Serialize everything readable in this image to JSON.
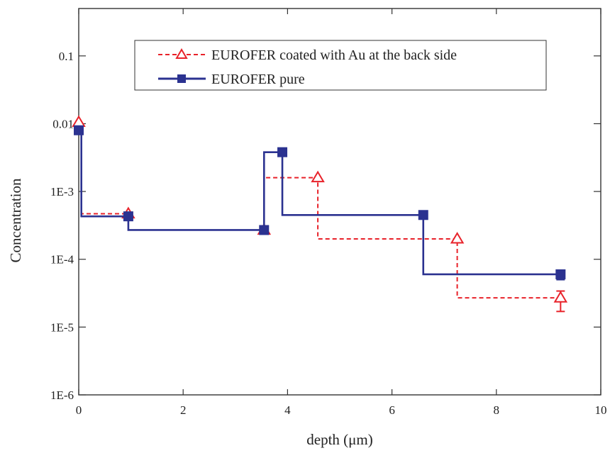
{
  "chart_data": {
    "type": "line",
    "step": true,
    "xlabel": "depth (μm)",
    "ylabel": "Concentration",
    "xlim": [
      0,
      10
    ],
    "ylim": [
      1e-06,
      0.5
    ],
    "yscale": "log",
    "x_ticks": [
      {
        "value": 0,
        "label": "0"
      },
      {
        "value": 2,
        "label": "2"
      },
      {
        "value": 4,
        "label": "4"
      },
      {
        "value": 6,
        "label": "6"
      },
      {
        "value": 8,
        "label": "8"
      },
      {
        "value": 10,
        "label": "10"
      }
    ],
    "y_ticks": [
      {
        "value": 0.1,
        "label": "0.1"
      },
      {
        "value": 0.01,
        "label": "0.01"
      },
      {
        "value": 0.001,
        "label": "1E-3"
      },
      {
        "value": 0.0001,
        "label": "1E-4"
      },
      {
        "value": 1e-05,
        "label": "1E-5"
      },
      {
        "value": 1e-06,
        "label": "1E-6"
      }
    ],
    "grid": false,
    "legend_position": "top-right",
    "series": [
      {
        "name": "EUROFER coated with Au at the back side",
        "color": "#e8222a",
        "line_style": "dashed",
        "marker": "open-triangle",
        "step_boundaries": [
          0.05,
          0.95,
          3.55,
          4.58,
          7.25
        ],
        "points": [
          {
            "x": 0.0,
            "y": 0.0105
          },
          {
            "x": 0.95,
            "y": 0.00047
          },
          {
            "x": 3.55,
            "y": 0.00027
          },
          {
            "x": 4.58,
            "y": 0.0016
          },
          {
            "x": 7.25,
            "y": 0.0002
          },
          {
            "x": 9.23,
            "y": 2.7e-05,
            "err_low": 1.7e-05,
            "err_high": 3.4e-05
          }
        ]
      },
      {
        "name": "EUROFER pure",
        "color": "#2b3290",
        "line_style": "solid",
        "marker": "filled-square",
        "step_boundaries": [
          0.05,
          0.95,
          3.55,
          3.9,
          6.6
        ],
        "points": [
          {
            "x": 0.0,
            "y": 0.008
          },
          {
            "x": 0.95,
            "y": 0.00043
          },
          {
            "x": 3.55,
            "y": 0.00027
          },
          {
            "x": 3.9,
            "y": 0.0038
          },
          {
            "x": 6.6,
            "y": 0.00045
          },
          {
            "x": 9.23,
            "y": 6e-05,
            "err_low": 5e-05,
            "err_high": 6.8e-05
          }
        ]
      }
    ]
  }
}
